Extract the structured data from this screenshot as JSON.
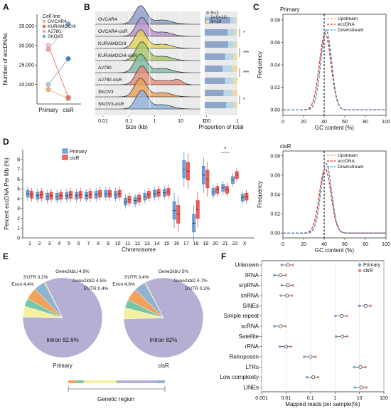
{
  "panels": {
    "A": {
      "label": "A",
      "chart_data": {
        "type": "scatter",
        "categories": [
          "Primary",
          "cisR"
        ],
        "ylabel": "Number of eccDNAs",
        "ylim": [
          15000,
          38000
        ],
        "yticks": [
          "20,000",
          "25,000",
          "30,000",
          "35,000"
        ],
        "ytick_values": [
          20000,
          25000,
          30000,
          35000
        ],
        "legend_title": "Cell line",
        "series": [
          {
            "name": "OVCAR4",
            "color": "#f0b27a",
            "values": [
              18700,
              16400
            ]
          },
          {
            "name": "KURAMOCHI",
            "color": "#ef6f6c",
            "values": [
              30000,
              16700
            ]
          },
          {
            "name": "A2780",
            "color": "#bfbfbf",
            "values": [
              29000,
              35500
            ]
          },
          {
            "name": "SKOV3",
            "color": "#7aa8d6",
            "values": [
              20000,
              26600
            ]
          }
        ],
        "series_colors_primary": [
          "#f0b27a",
          "#f7c6c6",
          "#f0a3a3",
          "#aac7e8"
        ],
        "series_colors_cisr": [
          "#f0b27a",
          "#ef6f6c",
          "#7aa8d6",
          "#3a7ec9"
        ]
      }
    },
    "B": {
      "label": "B",
      "chart_data": {
        "type": "area",
        "xlabel": "Size (kb)",
        "xticks": [
          "0.01",
          "0.1",
          "1",
          "10",
          "100"
        ],
        "xtick_values": [
          0.01,
          0.1,
          1,
          10,
          100
        ],
        "xscale": "log",
        "rows": [
          {
            "name": "OVCAR4",
            "color": "#8b9dc8"
          },
          {
            "name": "OVCAR4-cisR",
            "color": "#b592c9"
          },
          {
            "name": "KURAMOCHI",
            "color": "#e4d25a"
          },
          {
            "name": "KURAMOCHI-cisR",
            "color": "#a8c46a"
          },
          {
            "name": "A2780",
            "color": "#7fb8a4"
          },
          {
            "name": "A2780-cisR",
            "color": "#e58b78"
          },
          {
            "name": "SKOV3",
            "color": "#e9a05a"
          },
          {
            "name": "SKOV3-cisR",
            "color": "#8fb0d8"
          }
        ],
        "proportion": {
          "xlabel": "Proportion of total",
          "xticks": [
            "0",
            "1"
          ],
          "legend": [
            "S<1",
            "1<S<10",
            "S>10"
          ],
          "colors": [
            "#8ea6c9",
            "#b9d8e8",
            "#f3d9a0"
          ],
          "values": [
            [
              0.78,
              0.16,
              0.06
            ],
            [
              0.7,
              0.22,
              0.08
            ],
            [
              0.72,
              0.2,
              0.08
            ],
            [
              0.62,
              0.26,
              0.12
            ],
            [
              0.55,
              0.3,
              0.15
            ],
            [
              0.62,
              0.25,
              0.13
            ],
            [
              0.58,
              0.28,
              0.14
            ],
            [
              0.66,
              0.24,
              0.1
            ]
          ],
          "significance": [
            "*",
            "***",
            "***",
            "*"
          ]
        }
      }
    },
    "C": {
      "label": "C",
      "chart_data": [
        {
          "type": "line",
          "title": "Primary",
          "xlabel": "GC content (%)",
          "ylabel": "Frequency",
          "xlim": [
            0,
            100
          ],
          "ylim": [
            -0.005,
            0.085
          ],
          "xticks": [
            "0",
            "20",
            "40",
            "60",
            "80",
            "100"
          ],
          "yticks": [
            "0.00",
            "0.02",
            "0.04",
            "0.06",
            "0.08"
          ],
          "vline": 40,
          "series": [
            {
              "name": "Upstream",
              "color": "#f39c3d",
              "peak": 42,
              "sd": 5.2,
              "height": 0.071
            },
            {
              "name": "eccDNA",
              "color": "#e32620",
              "peak": 41,
              "sd": 5.6,
              "height": 0.068
            },
            {
              "name": "Downstream",
              "color": "#4f8fc6",
              "peak": 42,
              "sd": 5.2,
              "height": 0.071
            }
          ]
        },
        {
          "type": "line",
          "title": "cisR",
          "xlabel": "GC content (%)",
          "ylabel": "Frequency",
          "xlim": [
            0,
            100
          ],
          "ylim": [
            -0.005,
            0.085
          ],
          "xticks": [
            "0",
            "20",
            "40",
            "60",
            "80",
            "100"
          ],
          "yticks": [
            "0.00",
            "0.02",
            "0.04",
            "0.06",
            "0.08"
          ],
          "vline": 40,
          "series": [
            {
              "name": "Upstream",
              "color": "#f39c3d",
              "peak": 42,
              "sd": 5.2,
              "height": 0.072
            },
            {
              "name": "eccDNA",
              "color": "#e32620",
              "peak": 41,
              "sd": 5.6,
              "height": 0.067
            },
            {
              "name": "Downstream",
              "color": "#4f8fc6",
              "peak": 42,
              "sd": 5.2,
              "height": 0.072
            }
          ]
        }
      ]
    },
    "D": {
      "label": "D",
      "chart_data": {
        "type": "box",
        "xlabel": "Chromosome",
        "ylabel": "Percent eccDNA Per Mb (%)",
        "ylim": [
          0,
          9
        ],
        "yticks": [
          "0",
          "1",
          "2",
          "3",
          "4",
          "5",
          "6",
          "7",
          "8"
        ],
        "categories": [
          "1",
          "2",
          "3",
          "4",
          "5",
          "6",
          "7",
          "8",
          "9",
          "10",
          "11",
          "12",
          "13",
          "14",
          "15",
          "16",
          "17",
          "18",
          "19",
          "20",
          "21",
          "22",
          "X"
        ],
        "legend": [
          "Primary",
          "cisR"
        ],
        "colors": [
          "#4a86c7",
          "#e2332c"
        ],
        "significance": {
          "category": "21",
          "label": "*"
        },
        "primary_median": [
          4.5,
          4.3,
          4.2,
          4.2,
          4.3,
          4.3,
          4.3,
          4.4,
          4.5,
          4.4,
          3.7,
          3.8,
          4.2,
          4.5,
          4.6,
          2.8,
          7.0,
          1.5,
          6.4,
          4.7,
          5.1,
          5.9,
          4.1
        ],
        "cisr_median": [
          4.4,
          4.4,
          4.3,
          4.3,
          4.4,
          4.4,
          4.4,
          4.5,
          4.5,
          4.5,
          3.9,
          4.0,
          4.4,
          4.6,
          4.7,
          2.4,
          6.8,
          2.9,
          6.0,
          4.9,
          4.9,
          6.4,
          4.2
        ]
      }
    },
    "E": {
      "label": "E",
      "genetic_region_label": "Genetic region",
      "chart_data": [
        {
          "type": "pie",
          "title": "Primary",
          "labels": [
            "Intron 82.6%",
            "Exon 4.4%",
            "3'UTR 3.2%",
            "Gene2kbU 4.9%",
            "Gene2kbD 4.5%",
            "5'UTR 0.4%"
          ],
          "names": [
            "Intron",
            "Exon",
            "3'UTR",
            "Gene2kbU",
            "Gene2kbD",
            "5'UTR"
          ],
          "values": [
            82.6,
            4.4,
            3.2,
            4.9,
            4.5,
            0.4
          ],
          "colors": [
            "#b6afd4",
            "#f5efa0",
            "#79c5a8",
            "#f0a15a",
            "#8eb3d3",
            "#f0c070"
          ]
        },
        {
          "type": "pie",
          "title": "cisR",
          "labels": [
            "Intron 82%",
            "Exon 4.6%",
            "3'UTR 3.4%",
            "Gene2kbU 5%",
            "Gene2kbD 4.7%",
            "5'UTR 0.3%"
          ],
          "names": [
            "Intron",
            "Exon",
            "3'UTR",
            "Gene2kbU",
            "Gene2kbD",
            "5'UTR"
          ],
          "values": [
            82.0,
            4.6,
            3.4,
            5.0,
            4.7,
            0.3
          ],
          "colors": [
            "#b6afd4",
            "#f5efa0",
            "#79c5a8",
            "#f0a15a",
            "#8eb3d3",
            "#f0c070"
          ]
        }
      ]
    },
    "F": {
      "label": "F",
      "chart_data": {
        "type": "scatter",
        "xlabel": "Mapped reads per sample(%)",
        "xscale": "log",
        "xticks": [
          "0.001",
          "0.01",
          "0.1",
          "1",
          "10",
          "100"
        ],
        "xtick_values": [
          0.001,
          0.01,
          0.1,
          1,
          10,
          100
        ],
        "legend": [
          "Primary",
          "cisR"
        ],
        "colors": [
          "#7fa9d6",
          "#ef8d8d"
        ],
        "categories": [
          "Unknown",
          "tRNA",
          "srpRNA",
          "snRNA",
          "SINEs",
          "Simple repeat",
          "scRNA",
          "Satellite",
          "rRNA",
          "Retroposon",
          "LTRs",
          "Low complexity",
          "LINEs"
        ],
        "means": [
          0.012,
          0.006,
          0.012,
          0.011,
          18,
          1.9,
          0.006,
          2.0,
          0.01,
          0.1,
          11,
          0.13,
          12
        ]
      }
    }
  }
}
